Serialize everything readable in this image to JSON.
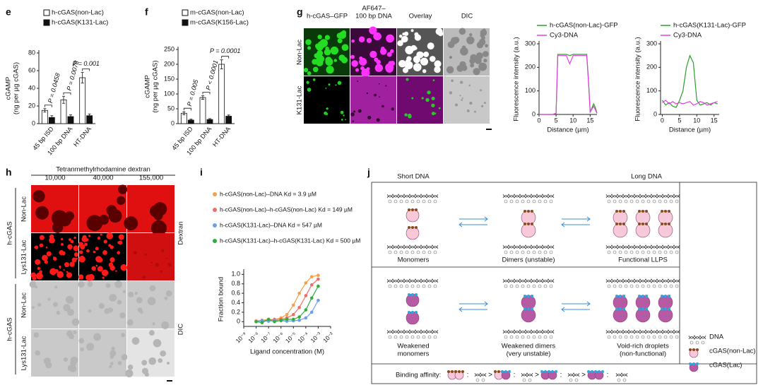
{
  "panel_labels": [
    "e",
    "f",
    "g",
    "h",
    "i",
    "j"
  ],
  "chart_data": [
    {
      "type": "bar",
      "y_label": [
        "cGAMP",
        "(ng per µg cGAS)"
      ],
      "categories": [
        "45 bp ISD",
        "100 bp DNA",
        "HT-DNA"
      ],
      "series": [
        {
          "name": "h-cGAS(non-Lac)",
          "color": "#ffffff",
          "values": [
            15,
            27,
            52
          ],
          "errors": [
            2,
            4,
            6
          ]
        },
        {
          "name": "h-cGAS(K131-Lac)",
          "color": "#111111",
          "values": [
            7,
            8,
            9
          ],
          "errors": [
            2,
            2,
            2
          ]
        }
      ],
      "annotations": [
        "P = 0.0458",
        "P = 0.0078",
        "P = 0.001"
      ],
      "ylim": [
        0,
        80
      ],
      "yticks": [
        0,
        20,
        40,
        60,
        80
      ]
    },
    {
      "type": "bar",
      "y_label": [
        "cGAMP",
        "(ng per µg cGAS)"
      ],
      "categories": [
        "45 bp ISD",
        "100 bp DNA",
        "HT-DNA"
      ],
      "series": [
        {
          "name": "m-cGAS(non-Lac)",
          "color": "#ffffff",
          "values": [
            35,
            88,
            200
          ],
          "errors": [
            5,
            6,
            15
          ]
        },
        {
          "name": "m-cGAS(K156-Lac)",
          "color": "#111111",
          "values": [
            12,
            14,
            25
          ],
          "errors": [
            3,
            3,
            4
          ]
        }
      ],
      "annotations": [
        "P = 0.005",
        "P < 0.0001",
        "P = 0.0001"
      ],
      "ylim": [
        0,
        250
      ],
      "yticks": [
        0,
        50,
        100,
        150,
        200,
        250
      ]
    },
    {
      "type": "line",
      "y_label": [
        "Fluorescence intensity (a.u.)"
      ],
      "x_label": "Distance (µm)",
      "x": [
        0,
        1,
        2,
        3,
        4,
        5,
        5.5,
        6,
        7,
        8,
        9,
        10,
        11,
        12,
        13,
        14,
        14.5,
        15,
        16,
        16.5,
        17
      ],
      "series": [
        {
          "name": "h-cGAS(non-Lac)-GFP",
          "color": "#2ca02c",
          "values": [
            0,
            0,
            0,
            0,
            0,
            5,
            255,
            255,
            255,
            255,
            250,
            255,
            255,
            255,
            255,
            255,
            150,
            10,
            45,
            30,
            5
          ]
        },
        {
          "name": "Cy3-DNA",
          "color": "#e040e0",
          "values": [
            0,
            0,
            0,
            0,
            0,
            5,
            250,
            250,
            250,
            250,
            215,
            250,
            250,
            250,
            250,
            250,
            140,
            10,
            35,
            20,
            5
          ]
        }
      ],
      "xlim": [
        0,
        17
      ],
      "xticks": [
        0,
        5,
        10,
        15
      ],
      "ylim": [
        0,
        300
      ],
      "yticks": [
        0,
        100,
        200,
        300
      ]
    },
    {
      "type": "line",
      "y_label": [
        "Fluorescence intensity (a.u.)"
      ],
      "x_label": "Distance (µm)",
      "x": [
        0,
        1,
        2,
        3,
        4,
        5,
        6,
        7,
        8,
        9,
        10,
        11,
        12,
        13,
        14,
        15,
        16
      ],
      "series": [
        {
          "name": "h-cGAS(K131-Lac)-GFP",
          "color": "#2ca02c",
          "values": [
            60,
            40,
            50,
            35,
            30,
            60,
            100,
            200,
            250,
            220,
            60,
            40,
            45,
            50,
            40,
            50,
            45
          ]
        },
        {
          "name": "Cy3-DNA",
          "color": "#e040e0",
          "values": [
            50,
            60,
            45,
            55,
            45,
            50,
            45,
            50,
            55,
            40,
            45,
            55,
            50,
            40,
            45,
            50,
            55
          ]
        }
      ],
      "xlim": [
        -0.5,
        16.5
      ],
      "xticks": [
        0,
        5,
        10,
        15
      ],
      "ylim": [
        0,
        300
      ],
      "yticks": [
        0,
        100,
        200,
        300
      ]
    },
    {
      "type": "scatter",
      "y_label": [
        "Fraction bound"
      ],
      "x_label": "Ligand concentration (M)",
      "xscale": "log",
      "series": [
        {
          "name": "h-cGAS(non-Lac)–DNA Kd = 3.9 µM",
          "color": "#f5a04a",
          "x": [
            1e-08,
            3e-08,
            1e-07,
            3e-07,
            1e-06,
            3e-06,
            1e-05,
            3e-05,
            0.0001,
            0.0003,
            0.001
          ],
          "values": [
            0.02,
            0.03,
            0.05,
            0.04,
            0.08,
            0.15,
            0.35,
            0.6,
            0.82,
            0.95,
            0.98
          ]
        },
        {
          "name": "h-cGAS(non-Lac)–h-cGAS(non-Lac) Kd = 149 µM",
          "color": "#ef6f62",
          "x": [
            1e-08,
            3e-08,
            1e-07,
            3e-07,
            1e-06,
            3e-06,
            1e-05,
            3e-05,
            0.0001,
            0.0003,
            0.001
          ],
          "values": [
            0,
            0.02,
            0.03,
            0.05,
            0.05,
            0.08,
            0.15,
            0.3,
            0.55,
            0.78,
            0.9
          ]
        },
        {
          "name": "h-cGAS(K131-Lac)–DNA Kd = 547 µM",
          "color": "#6f9fe6",
          "x": [
            1e-08,
            3e-08,
            1e-07,
            3e-07,
            1e-06,
            3e-06,
            1e-05,
            3e-05,
            0.0001,
            0.0003,
            0.001
          ],
          "values": [
            0,
            0.02,
            0.01,
            0.03,
            0.02,
            0.01,
            0.02,
            0.03,
            0.08,
            0.2,
            0.45
          ]
        },
        {
          "name": "h-cGAS(K131-Lac)–h-cGAS(K131-Lac) Kd = 500 µM",
          "color": "#2fae3c",
          "x": [
            1e-08,
            3e-08,
            1e-07,
            3e-07,
            1e-06,
            3e-06,
            1e-05,
            3e-05,
            0.0001,
            0.0003,
            0.001
          ],
          "values": [
            0,
            -0.02,
            0.05,
            0,
            0.03,
            0.05,
            0.05,
            0.1,
            0.25,
            0.5,
            0.75
          ]
        }
      ],
      "xlim": [
        1e-09,
        0.01
      ],
      "xticks": [
        {
          "value": 1e-09,
          "label": "10⁻⁹"
        },
        {
          "value": 1e-08,
          "label": "10⁻⁸"
        },
        {
          "value": 1e-07,
          "label": "10⁻⁷"
        },
        {
          "value": 1e-06,
          "label": "10⁻⁶"
        },
        {
          "value": 1e-05,
          "label": "10⁻⁵"
        },
        {
          "value": 0.0001,
          "label": "10⁻⁴"
        },
        {
          "value": 0.001,
          "label": "10⁻³"
        },
        {
          "value": 0.01,
          "label": "10⁻²"
        }
      ],
      "ylim": [
        -0.1,
        1.05
      ],
      "yticks": [
        0,
        0.2,
        0.4,
        0.6,
        0.8,
        {
          "value": 1,
          "label": "1.0"
        }
      ]
    }
  ],
  "microscopy_g": {
    "columns": [
      [
        "h-cGAS–GFP"
      ],
      [
        "AF647–",
        "100 bp DNA"
      ],
      [
        "Overlay"
      ],
      [
        "DIC"
      ]
    ],
    "rows": [
      "Non-Lac",
      "K131-Lac"
    ]
  },
  "microscopy_h": {
    "title": "Tetranmethylrhodamine dextran",
    "columns": [
      "10,000",
      "40,000",
      "155,000"
    ],
    "groups": [
      {
        "label": "h-cGAS",
        "rows": [
          "Non-Lac",
          "Lys131-Lac"
        ],
        "side": "Dextran"
      },
      {
        "label": "h-cGAS",
        "rows": [
          "Non-Lac",
          "Lys131-Lac"
        ],
        "side": "DIC"
      }
    ]
  },
  "diagram_j": {
    "headers": [
      "Short DNA",
      "Long DNA"
    ],
    "labels": [
      [
        "Monomers"
      ],
      [
        "Dimers (unstable)"
      ],
      [
        "Functional LLPS"
      ],
      [
        "Weakened",
        "monomers"
      ],
      [
        "Weakened dimers",
        "(very unstable)"
      ],
      [
        "Void-rich droplets",
        "(non-functional)"
      ]
    ],
    "legend": [
      "DNA",
      "cGAS(non-Lac)",
      "cGAS(Lac)"
    ],
    "binding_affinity": {
      "label": "Binding affinity:",
      "separators": [
        ":",
        ">",
        ":",
        ">",
        ":",
        ">",
        ":"
      ]
    }
  }
}
